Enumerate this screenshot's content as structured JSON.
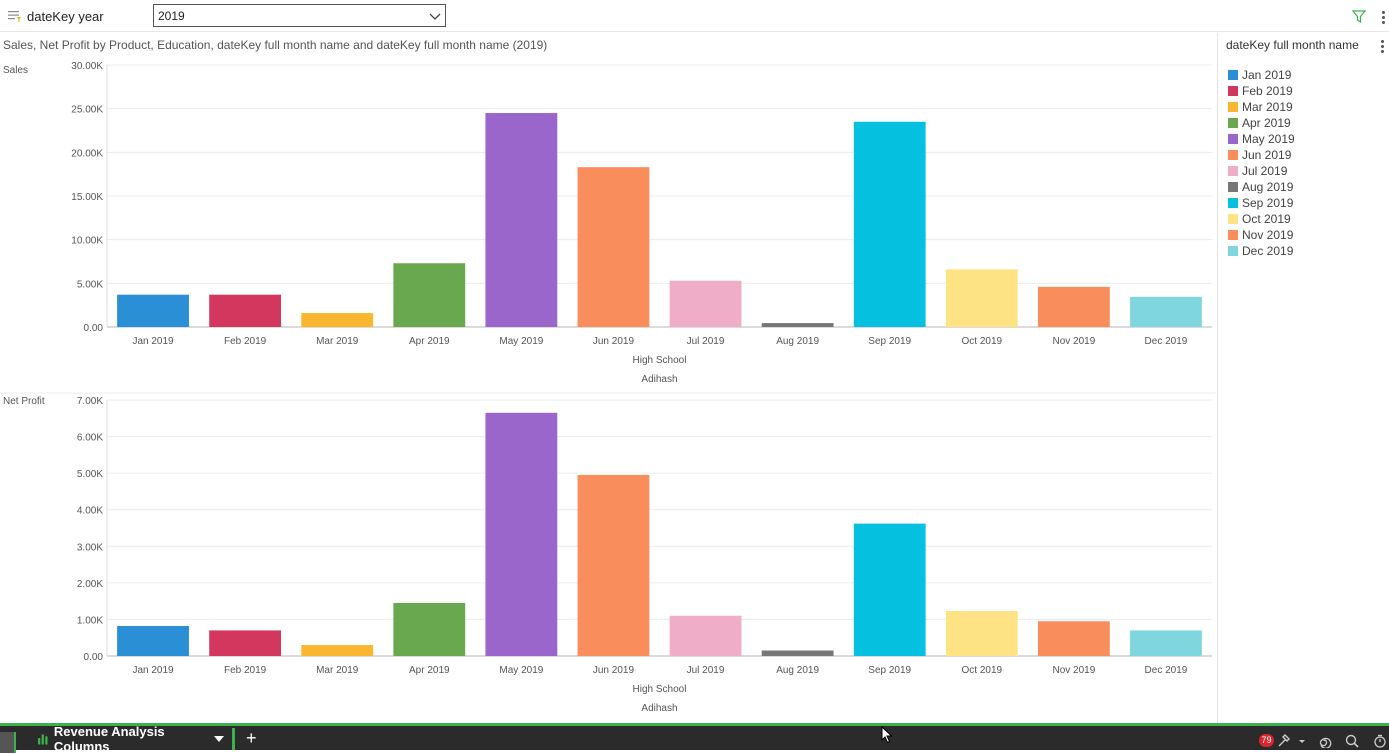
{
  "filter": {
    "label": "dateKey year",
    "selected": "2019",
    "icon": "filter-list-icon"
  },
  "chart_title": "Sales, Net Profit by Product, Education, dateKey full month name and dateKey full month name (2019)",
  "legend": {
    "title": "dateKey full month name",
    "items": [
      {
        "label": "Jan 2019",
        "color": "#2b8fd6"
      },
      {
        "label": "Feb 2019",
        "color": "#d4375e"
      },
      {
        "label": "Mar 2019",
        "color": "#fbb630"
      },
      {
        "label": "Apr 2019",
        "color": "#6aa84f"
      },
      {
        "label": "May 2019",
        "color": "#9b66cc"
      },
      {
        "label": "Jun 2019",
        "color": "#f98d5c"
      },
      {
        "label": "Jul 2019",
        "color": "#f0adc8"
      },
      {
        "label": "Aug 2019",
        "color": "#777777"
      },
      {
        "label": "Sep 2019",
        "color": "#06c0df"
      },
      {
        "label": "Oct 2019",
        "color": "#fde384"
      },
      {
        "label": "Nov 2019",
        "color": "#f98d5c"
      },
      {
        "label": "Dec 2019",
        "color": "#7fd6de"
      }
    ]
  },
  "chart_data": [
    {
      "type": "bar",
      "ylabel": "Sales",
      "categories": [
        "Jan 2019",
        "Feb 2019",
        "Mar 2019",
        "Apr 2019",
        "May 2019",
        "Jun 2019",
        "Jul 2019",
        "Aug 2019",
        "Sep 2019",
        "Oct 2019",
        "Nov 2019",
        "Dec 2019"
      ],
      "values": [
        3700,
        3700,
        1600,
        7300,
        24500,
        18300,
        5300,
        450,
        23500,
        6600,
        4600,
        3450
      ],
      "yticks": [
        0,
        5000,
        10000,
        15000,
        20000,
        25000,
        30000
      ],
      "ytick_labels": [
        "0.00",
        "5.00K",
        "10.00K",
        "15.00K",
        "20.00K",
        "25.00K",
        "30.00K"
      ],
      "ylim": [
        0,
        30000
      ],
      "group_label": "High School",
      "outer_label": "Adihash",
      "grid": true
    },
    {
      "type": "bar",
      "ylabel": "Net Profit",
      "categories": [
        "Jan 2019",
        "Feb 2019",
        "Mar 2019",
        "Apr 2019",
        "May 2019",
        "Jun 2019",
        "Jul 2019",
        "Aug 2019",
        "Sep 2019",
        "Oct 2019",
        "Nov 2019",
        "Dec 2019"
      ],
      "values": [
        820,
        700,
        300,
        1450,
        6650,
        4950,
        1100,
        150,
        3620,
        1230,
        950,
        700
      ],
      "yticks": [
        0,
        1000,
        2000,
        3000,
        4000,
        5000,
        6000,
        7000
      ],
      "ytick_labels": [
        "0.00",
        "1.00K",
        "2.00K",
        "3.00K",
        "4.00K",
        "5.00K",
        "6.00K",
        "7.00K"
      ],
      "ylim": [
        0,
        7000
      ],
      "group_label": "High School",
      "outer_label": "Adihash",
      "grid": true
    }
  ],
  "bottom_bar": {
    "tab_label": "Revenue Analysis Columns",
    "add_label": "+",
    "badge_count": "79"
  }
}
